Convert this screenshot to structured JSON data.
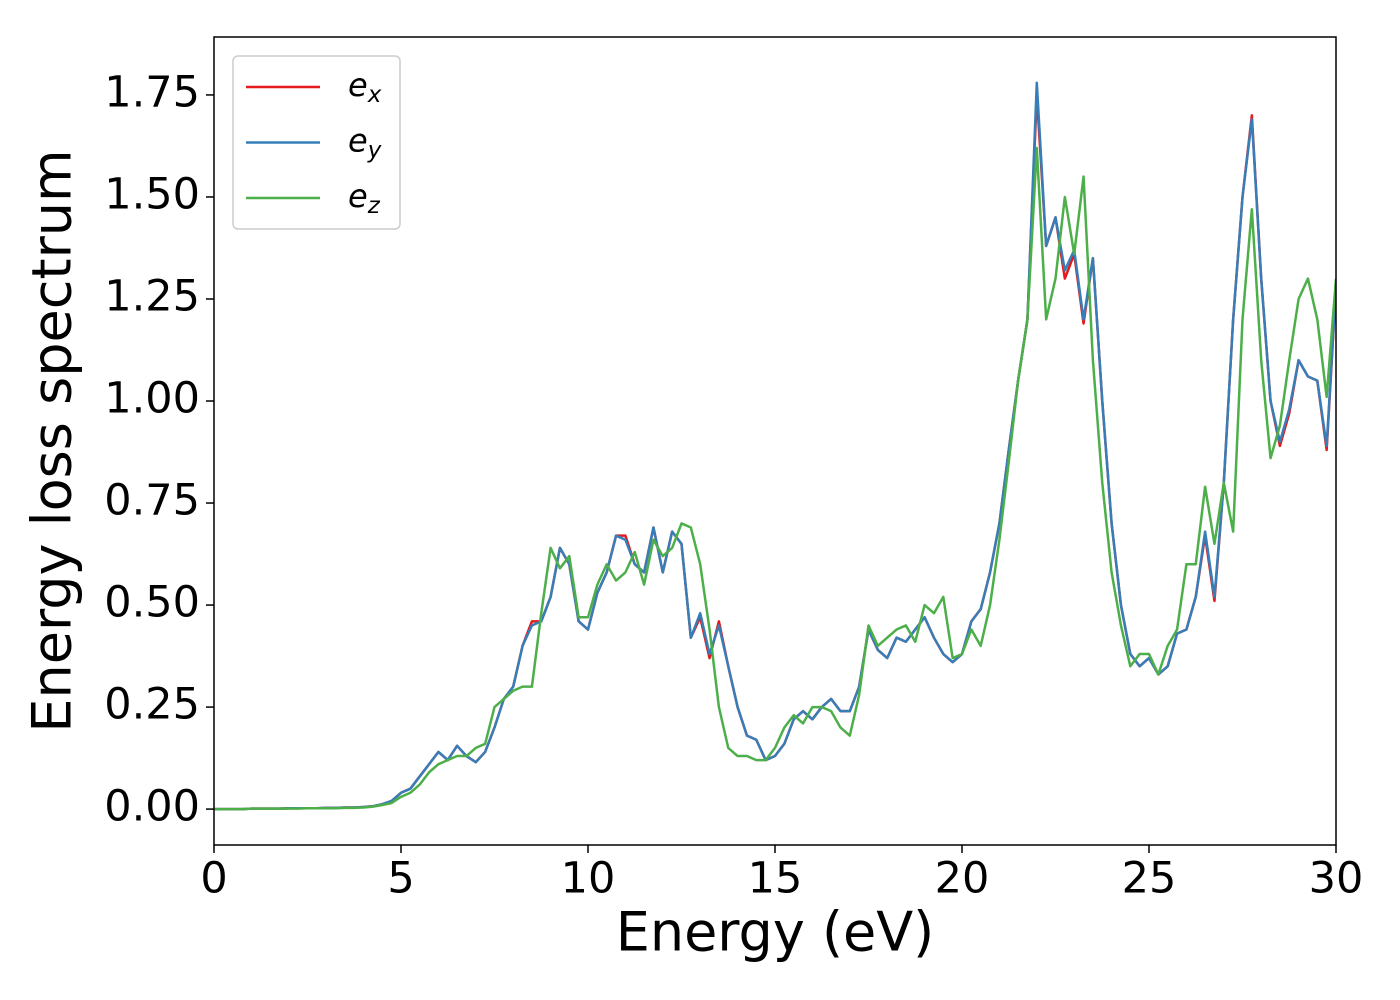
{
  "chart_data": {
    "type": "line",
    "xlabel": "Energy (eV)",
    "ylabel": "Energy loss spectrum",
    "x": [
      0,
      0.25,
      0.5,
      0.75,
      1,
      1.25,
      1.5,
      1.75,
      2,
      2.25,
      2.5,
      2.75,
      3,
      3.25,
      3.5,
      3.75,
      4,
      4.25,
      4.5,
      4.75,
      5,
      5.25,
      5.5,
      5.75,
      6,
      6.25,
      6.5,
      6.75,
      7,
      7.25,
      7.5,
      7.75,
      8,
      8.25,
      8.5,
      8.75,
      9,
      9.25,
      9.5,
      9.75,
      10,
      10.25,
      10.5,
      10.75,
      11,
      11.25,
      11.5,
      11.75,
      12,
      12.25,
      12.5,
      12.75,
      13,
      13.25,
      13.5,
      13.75,
      14,
      14.25,
      14.5,
      14.75,
      15,
      15.25,
      15.5,
      15.75,
      16,
      16.25,
      16.5,
      16.75,
      17,
      17.25,
      17.5,
      17.75,
      18,
      18.25,
      18.5,
      18.75,
      19,
      19.25,
      19.5,
      19.75,
      20,
      20.25,
      20.5,
      20.75,
      21,
      21.25,
      21.5,
      21.75,
      22,
      22.25,
      22.5,
      22.75,
      23,
      23.25,
      23.5,
      23.75,
      24,
      24.25,
      24.5,
      24.75,
      25,
      25.25,
      25.5,
      25.75,
      26,
      26.25,
      26.5,
      26.75,
      27,
      27.25,
      27.5,
      27.75,
      28,
      28.25,
      28.5,
      28.75,
      29,
      29.25,
      29.5,
      29.75,
      30
    ],
    "series": [
      {
        "name": "ex",
        "color": "#e41a1c",
        "values": [
          0,
          0,
          0,
          0,
          0.001,
          0.001,
          0.001,
          0.001,
          0.002,
          0.002,
          0.002,
          0.002,
          0.003,
          0.003,
          0.004,
          0.004,
          0.005,
          0.007,
          0.012,
          0.02,
          0.04,
          0.05,
          0.08,
          0.11,
          0.14,
          0.12,
          0.155,
          0.13,
          0.115,
          0.14,
          0.2,
          0.27,
          0.3,
          0.4,
          0.46,
          0.46,
          0.52,
          0.64,
          0.6,
          0.46,
          0.44,
          0.53,
          0.58,
          0.67,
          0.67,
          0.6,
          0.58,
          0.69,
          0.58,
          0.68,
          0.65,
          0.42,
          0.47,
          0.37,
          0.46,
          0.35,
          0.25,
          0.18,
          0.17,
          0.12,
          0.13,
          0.16,
          0.22,
          0.24,
          0.22,
          0.25,
          0.27,
          0.24,
          0.24,
          0.3,
          0.44,
          0.39,
          0.37,
          0.42,
          0.41,
          0.44,
          0.47,
          0.42,
          0.38,
          0.36,
          0.38,
          0.46,
          0.49,
          0.58,
          0.7,
          0.88,
          1.05,
          1.2,
          1.75,
          1.38,
          1.45,
          1.3,
          1.36,
          1.19,
          1.35,
          1.0,
          0.7,
          0.5,
          0.38,
          0.35,
          0.37,
          0.33,
          0.35,
          0.43,
          0.44,
          0.52,
          0.67,
          0.51,
          0.8,
          1.2,
          1.5,
          1.7,
          1.3,
          1.0,
          0.89,
          0.97,
          1.1,
          1.06,
          1.05,
          0.88,
          1.28
        ]
      },
      {
        "name": "ey",
        "color": "#377eb8",
        "values": [
          0,
          0,
          0,
          0,
          0.001,
          0.001,
          0.001,
          0.001,
          0.002,
          0.002,
          0.002,
          0.002,
          0.003,
          0.003,
          0.004,
          0.004,
          0.005,
          0.007,
          0.012,
          0.02,
          0.04,
          0.05,
          0.08,
          0.11,
          0.14,
          0.12,
          0.155,
          0.13,
          0.115,
          0.14,
          0.2,
          0.27,
          0.3,
          0.4,
          0.45,
          0.46,
          0.52,
          0.64,
          0.6,
          0.46,
          0.44,
          0.53,
          0.58,
          0.67,
          0.66,
          0.6,
          0.58,
          0.69,
          0.58,
          0.68,
          0.65,
          0.42,
          0.48,
          0.38,
          0.45,
          0.35,
          0.25,
          0.18,
          0.17,
          0.12,
          0.13,
          0.16,
          0.22,
          0.24,
          0.22,
          0.25,
          0.27,
          0.24,
          0.24,
          0.3,
          0.44,
          0.39,
          0.37,
          0.42,
          0.41,
          0.44,
          0.47,
          0.42,
          0.38,
          0.36,
          0.38,
          0.46,
          0.49,
          0.58,
          0.7,
          0.88,
          1.05,
          1.2,
          1.78,
          1.38,
          1.45,
          1.32,
          1.37,
          1.2,
          1.35,
          1.0,
          0.7,
          0.5,
          0.38,
          0.35,
          0.37,
          0.33,
          0.35,
          0.43,
          0.44,
          0.52,
          0.68,
          0.52,
          0.8,
          1.2,
          1.5,
          1.69,
          1.3,
          1.0,
          0.9,
          0.98,
          1.1,
          1.06,
          1.05,
          0.89,
          1.28
        ]
      },
      {
        "name": "ez",
        "color": "#4daf4a",
        "values": [
          0,
          0,
          0,
          0,
          0.001,
          0.001,
          0.001,
          0.001,
          0.001,
          0.001,
          0.002,
          0.002,
          0.002,
          0.002,
          0.003,
          0.003,
          0.004,
          0.006,
          0.01,
          0.015,
          0.03,
          0.04,
          0.06,
          0.09,
          0.11,
          0.12,
          0.13,
          0.13,
          0.15,
          0.16,
          0.25,
          0.27,
          0.29,
          0.3,
          0.3,
          0.48,
          0.64,
          0.59,
          0.62,
          0.47,
          0.47,
          0.55,
          0.6,
          0.56,
          0.58,
          0.63,
          0.55,
          0.66,
          0.62,
          0.64,
          0.7,
          0.69,
          0.6,
          0.44,
          0.25,
          0.15,
          0.13,
          0.13,
          0.12,
          0.12,
          0.15,
          0.2,
          0.23,
          0.21,
          0.25,
          0.25,
          0.24,
          0.2,
          0.18,
          0.28,
          0.45,
          0.4,
          0.42,
          0.44,
          0.45,
          0.41,
          0.5,
          0.48,
          0.52,
          0.37,
          0.38,
          0.44,
          0.4,
          0.5,
          0.66,
          0.85,
          1.05,
          1.2,
          1.62,
          1.2,
          1.3,
          1.5,
          1.36,
          1.55,
          1.1,
          0.8,
          0.58,
          0.45,
          0.35,
          0.38,
          0.38,
          0.33,
          0.4,
          0.44,
          0.6,
          0.6,
          0.79,
          0.65,
          0.8,
          0.68,
          1.2,
          1.47,
          1.1,
          0.86,
          0.94,
          1.1,
          1.25,
          1.3,
          1.2,
          1.01,
          1.3
        ]
      }
    ],
    "xlim": [
      0,
      30
    ],
    "xticks": [
      0,
      5,
      10,
      15,
      20,
      25,
      30
    ],
    "ylim": [
      -0.088,
      1.892
    ],
    "yticks": [
      {
        "value": 0,
        "label": "0.00"
      },
      {
        "value": 0.25,
        "label": "0.25"
      },
      {
        "value": 0.5,
        "label": "0.50"
      },
      {
        "value": 0.75,
        "label": "0.75"
      },
      {
        "value": 1,
        "label": "1.00"
      },
      {
        "value": 1.25,
        "label": "1.25"
      },
      {
        "value": 1.5,
        "label": "1.50"
      },
      {
        "value": 1.75,
        "label": "1.75"
      }
    ],
    "legend": "upper left"
  }
}
